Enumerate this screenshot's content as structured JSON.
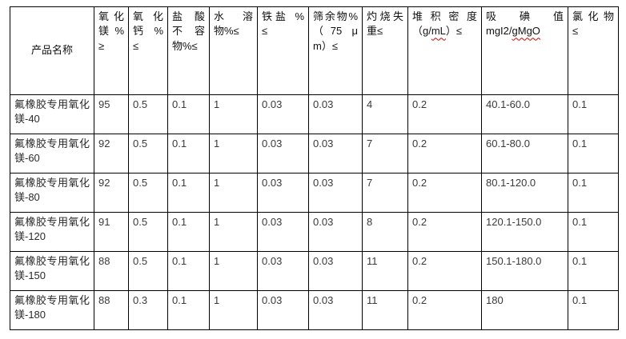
{
  "table": {
    "columns": [
      {
        "key": "product",
        "lines": [
          "产品名称"
        ]
      },
      {
        "key": "mgo",
        "lines": [
          "氧化",
          "镁 %",
          "≥"
        ]
      },
      {
        "key": "cao",
        "lines": [
          "氧化",
          "钙 %",
          "≤"
        ]
      },
      {
        "key": "hcl-insoluble",
        "lines": [
          "盐酸",
          "不容",
          "物%≤"
        ]
      },
      {
        "key": "water-soluble",
        "lines": [
          "水溶",
          "物%≤"
        ]
      },
      {
        "key": "iron-salt",
        "lines": [
          "铁盐 %",
          "≤"
        ]
      },
      {
        "key": "sieve-residue",
        "lines": [
          "筛余物%",
          "（75 μ",
          "m）≤"
        ]
      },
      {
        "key": "ignition-loss",
        "lines": [
          "灼烧失",
          "重≤"
        ]
      },
      {
        "key": "bulk-density",
        "lines": [
          "堆积密度",
          "（g/mL）≤"
        ]
      },
      {
        "key": "iodine-value",
        "lines": [
          "吸 碘 值",
          "mgI2/gMgO"
        ]
      },
      {
        "key": "chloride",
        "lines": [
          "氯化物",
          "≤"
        ]
      }
    ],
    "spellcheck_wavy_substrings": [
      "mL",
      "gMgO"
    ],
    "rows": [
      {
        "product": "氟橡胶专用氧化镁-40",
        "values": [
          "95",
          "0.5",
          "0.1",
          "1",
          "0.03",
          "0.03",
          "4",
          "0.2",
          "40.1-60.0",
          "0.1"
        ]
      },
      {
        "product": "氟橡胶专用氧化镁-60",
        "values": [
          "92",
          "0.5",
          "0.1",
          "1",
          "0.03",
          "0.03",
          "7",
          "0.2",
          "60.1-80.0",
          "0.1"
        ]
      },
      {
        "product": "氟橡胶专用氧化镁-80",
        "values": [
          "92",
          "0.5",
          "0.1",
          "1",
          "0.03",
          "0.03",
          "7",
          "0.2",
          "80.1-120.0",
          "0.1"
        ]
      },
      {
        "product": "氟橡胶专用氧化镁-120",
        "values": [
          "91",
          "0.5",
          "0.1",
          "1",
          "0.03",
          "0.03",
          "8",
          "0.2",
          "120.1-150.0",
          "0.1"
        ]
      },
      {
        "product": "氟橡胶专用氧化镁-150",
        "values": [
          "88",
          "0.5",
          "0.1",
          "1",
          "0.03",
          "0.03",
          "11",
          "0.2",
          "150.1-180.0",
          "0.1"
        ]
      },
      {
        "product": "氟橡胶专用氧化镁-180",
        "values": [
          "88",
          "0.3",
          "0.1",
          "1",
          "0.03",
          "0.03",
          "11",
          "0.2",
          "180",
          "0.1"
        ]
      }
    ]
  },
  "colors": {
    "border": "#000000",
    "header_text": "#111111",
    "cell_text": "#3a3a3a",
    "spellcheck_underline": "#cc0000",
    "background": "#ffffff"
  }
}
